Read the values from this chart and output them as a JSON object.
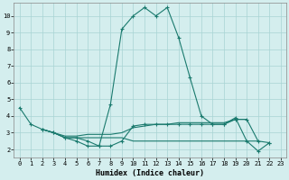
{
  "xlabel": "Humidex (Indice chaleur)",
  "background_color": "#d4eeee",
  "line_color": "#1a7a6e",
  "grid_color": "#a8d4d4",
  "xlim": [
    -0.5,
    23.5
  ],
  "ylim": [
    1.5,
    10.8
  ],
  "yticks": [
    2,
    3,
    4,
    5,
    6,
    7,
    8,
    9,
    10
  ],
  "xticks": [
    0,
    1,
    2,
    3,
    4,
    5,
    6,
    7,
    8,
    9,
    10,
    11,
    12,
    13,
    14,
    15,
    16,
    17,
    18,
    19,
    20,
    21,
    22,
    23
  ],
  "series1_x": [
    0,
    1,
    2,
    3,
    4,
    5,
    6,
    7,
    8,
    9,
    10,
    11,
    12,
    13,
    14,
    15,
    16,
    17,
    18,
    19,
    20,
    21,
    22
  ],
  "series1_y": [
    4.5,
    3.5,
    3.2,
    3.0,
    2.7,
    2.5,
    2.2,
    2.2,
    4.7,
    9.2,
    10.0,
    10.5,
    10.0,
    10.5,
    8.7,
    6.3,
    4.0,
    3.5,
    3.5,
    3.9,
    2.5,
    1.9,
    2.4
  ],
  "series2_x": [
    2,
    3,
    4,
    5,
    6,
    7,
    8,
    9,
    10,
    11,
    12,
    13,
    14,
    15,
    16,
    17,
    18,
    19,
    20
  ],
  "series2_y": [
    3.2,
    3.0,
    2.8,
    2.8,
    2.9,
    2.9,
    2.9,
    3.0,
    3.3,
    3.4,
    3.5,
    3.5,
    3.6,
    3.6,
    3.6,
    3.6,
    3.6,
    3.8,
    3.8
  ],
  "series3_x": [
    2,
    3,
    4,
    5,
    6,
    7,
    8,
    9,
    10,
    11,
    12,
    13,
    14,
    15,
    16,
    17,
    18,
    19,
    20,
    21
  ],
  "series3_y": [
    3.2,
    3.0,
    2.7,
    2.7,
    2.7,
    2.7,
    2.7,
    2.7,
    2.5,
    2.5,
    2.5,
    2.5,
    2.5,
    2.5,
    2.5,
    2.5,
    2.5,
    2.5,
    2.5,
    2.5
  ],
  "series4_x": [
    2,
    3,
    4,
    5,
    6,
    7,
    8,
    9,
    10,
    11,
    12,
    13,
    14,
    15,
    16,
    17,
    18,
    19,
    20,
    21,
    22
  ],
  "series4_y": [
    3.2,
    3.0,
    2.7,
    2.7,
    2.5,
    2.2,
    2.2,
    2.5,
    3.4,
    3.5,
    3.5,
    3.5,
    3.5,
    3.5,
    3.5,
    3.5,
    3.5,
    3.8,
    3.8,
    2.5,
    2.4
  ],
  "xlabel_fontsize": 6,
  "tick_fontsize": 5
}
